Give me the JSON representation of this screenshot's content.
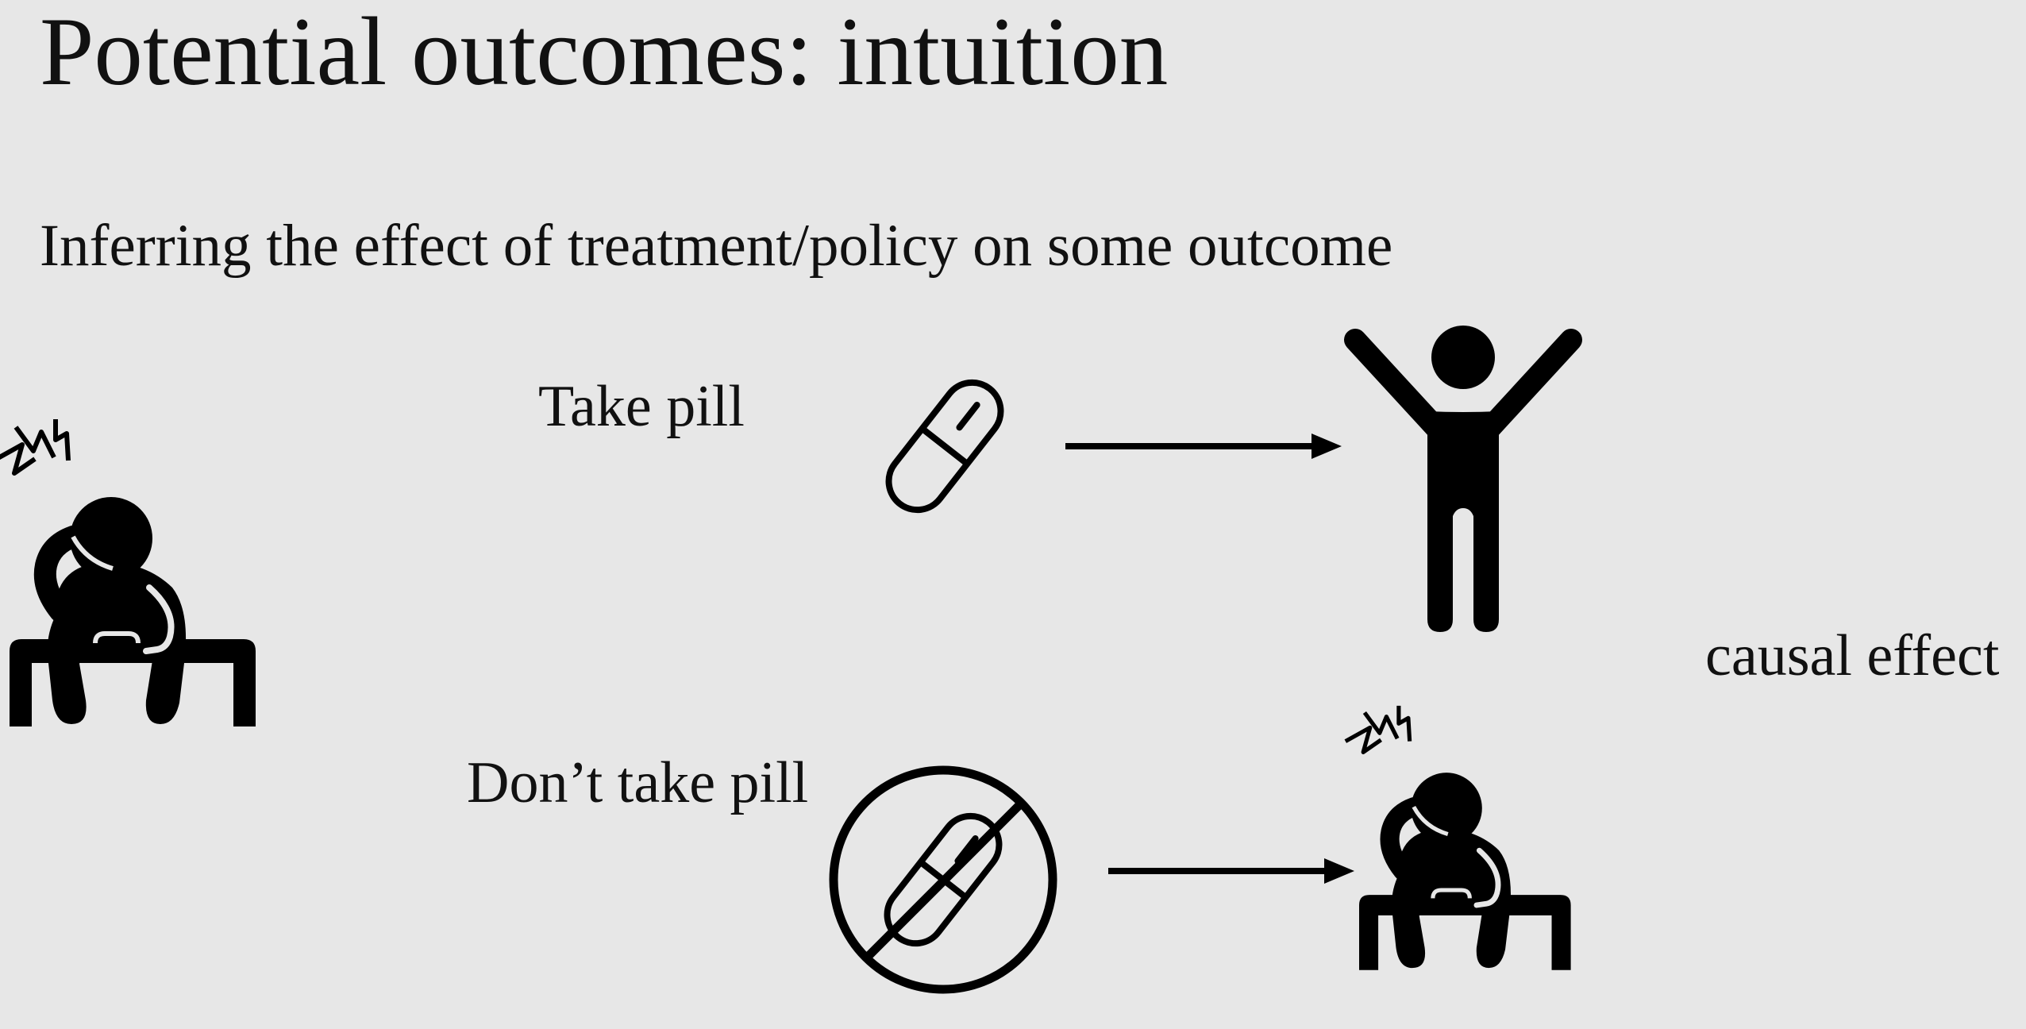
{
  "slide": {
    "title": "Potential outcomes: intuition",
    "subtitle": "Inferring the effect of treatment/policy on some outcome"
  },
  "diagram": {
    "branches": [
      {
        "label": "Take pill",
        "treatment_icon": "pill-icon",
        "outcome_icon": "happy-person-arms-raised-icon"
      },
      {
        "label": "Don’t take pill",
        "treatment_icon": "no-pill-icon",
        "outcome_icon": "sick-person-sitting-icon"
      }
    ],
    "subject_icon": "sick-person-sitting-icon",
    "result_label": "causal effect"
  },
  "colors": {
    "background": "#e7e7e7",
    "ink": "#000000"
  }
}
